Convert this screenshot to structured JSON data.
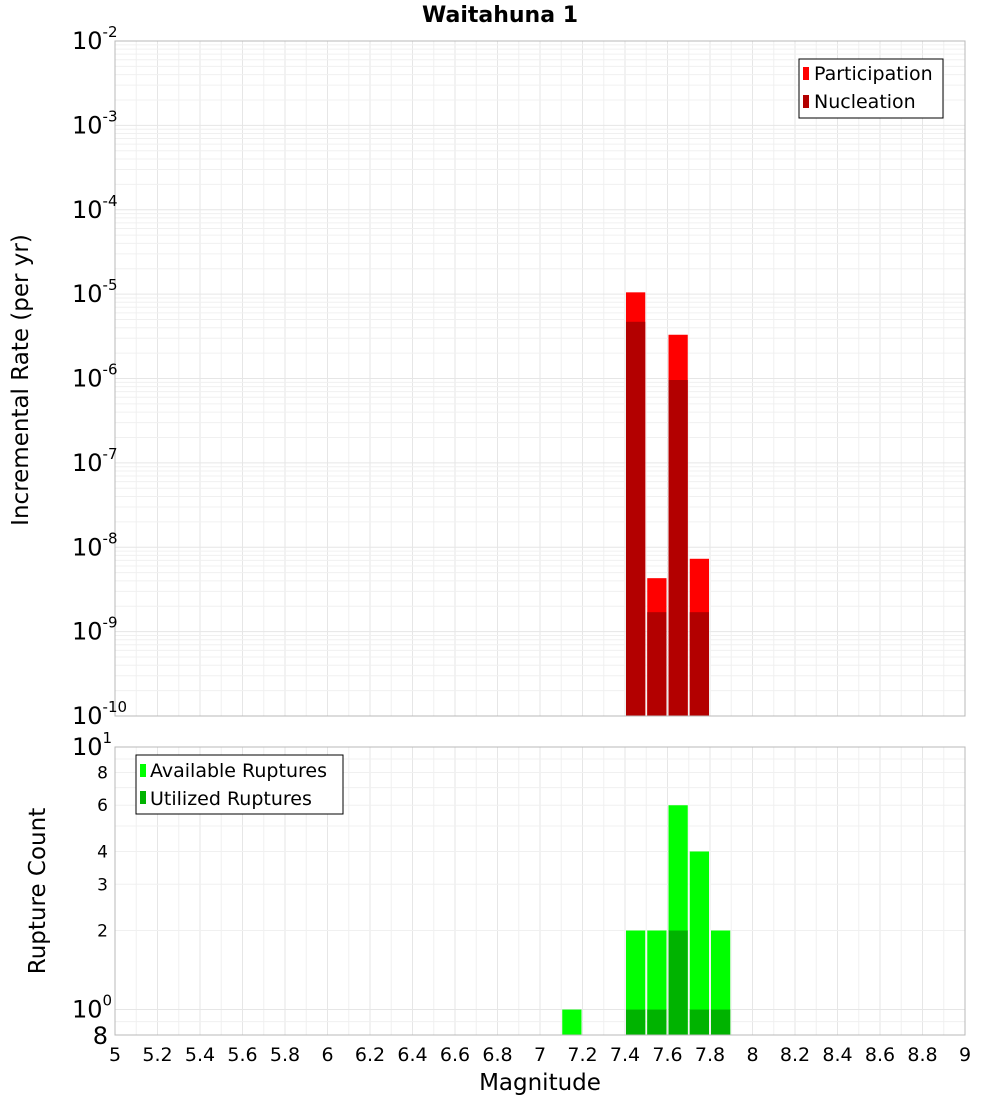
{
  "chart_data": [
    {
      "type": "bar",
      "title": "Waitahuna 1",
      "xlabel": "",
      "ylabel": "Incremental Rate (per yr)",
      "yscale": "log",
      "ylim": [
        1e-10,
        0.01
      ],
      "xlim": [
        5,
        9
      ],
      "bar_width": 0.1,
      "ytick_labels": [
        {
          "base": "10",
          "exp": "-2"
        },
        {
          "base": "10",
          "exp": "-3"
        },
        {
          "base": "10",
          "exp": "-4"
        },
        {
          "base": "10",
          "exp": "-5"
        },
        {
          "base": "10",
          "exp": "-6"
        },
        {
          "base": "10",
          "exp": "-7"
        },
        {
          "base": "10",
          "exp": "-8"
        },
        {
          "base": "10",
          "exp": "-9"
        },
        {
          "base": "10",
          "exp": "-10"
        }
      ],
      "legend": {
        "placement": "top-right",
        "entries": [
          "Participation",
          "Nucleation"
        ]
      },
      "series": [
        {
          "name": "Participation",
          "color": "#ff0000",
          "x": [
            7.45,
            7.55,
            7.65,
            7.75
          ],
          "values": [
            1.05e-05,
            4.3e-09,
            3.3e-06,
            7.3e-09
          ]
        },
        {
          "name": "Nucleation",
          "color": "#b30000",
          "x": [
            7.45,
            7.55,
            7.65,
            7.75
          ],
          "values": [
            4.7e-06,
            1.7e-09,
            9.6e-07,
            1.7e-09
          ]
        }
      ],
      "grid": true
    },
    {
      "type": "bar",
      "title": "",
      "xlabel": "Magnitude",
      "ylabel": "Rupture Count",
      "yscale": "log",
      "ylim": [
        0.8,
        10
      ],
      "xlim": [
        5,
        9
      ],
      "bar_width": 0.1,
      "ytick_labels": [
        "10^1",
        "8",
        "6",
        "4",
        "3",
        "2",
        "10^0",
        "8"
      ],
      "xtick_labels": [
        "5",
        "5.2",
        "5.4",
        "5.6",
        "5.8",
        "6",
        "6.2",
        "6.4",
        "6.6",
        "6.8",
        "7",
        "7.2",
        "7.4",
        "7.6",
        "7.8",
        "8",
        "8.2",
        "8.4",
        "8.6",
        "8.8",
        "9"
      ],
      "legend": {
        "placement": "top-left",
        "entries": [
          "Available Ruptures",
          "Utilized Ruptures"
        ]
      },
      "series": [
        {
          "name": "Available Ruptures",
          "color": "#00ff00",
          "x": [
            7.15,
            7.45,
            7.55,
            7.65,
            7.75,
            7.85
          ],
          "values": [
            1,
            2,
            2,
            6,
            4,
            2
          ]
        },
        {
          "name": "Utilized Ruptures",
          "color": "#00b300",
          "x": [
            7.45,
            7.55,
            7.65,
            7.75,
            7.85
          ],
          "values": [
            1,
            1,
            2,
            1,
            1
          ]
        }
      ],
      "grid": true
    }
  ]
}
